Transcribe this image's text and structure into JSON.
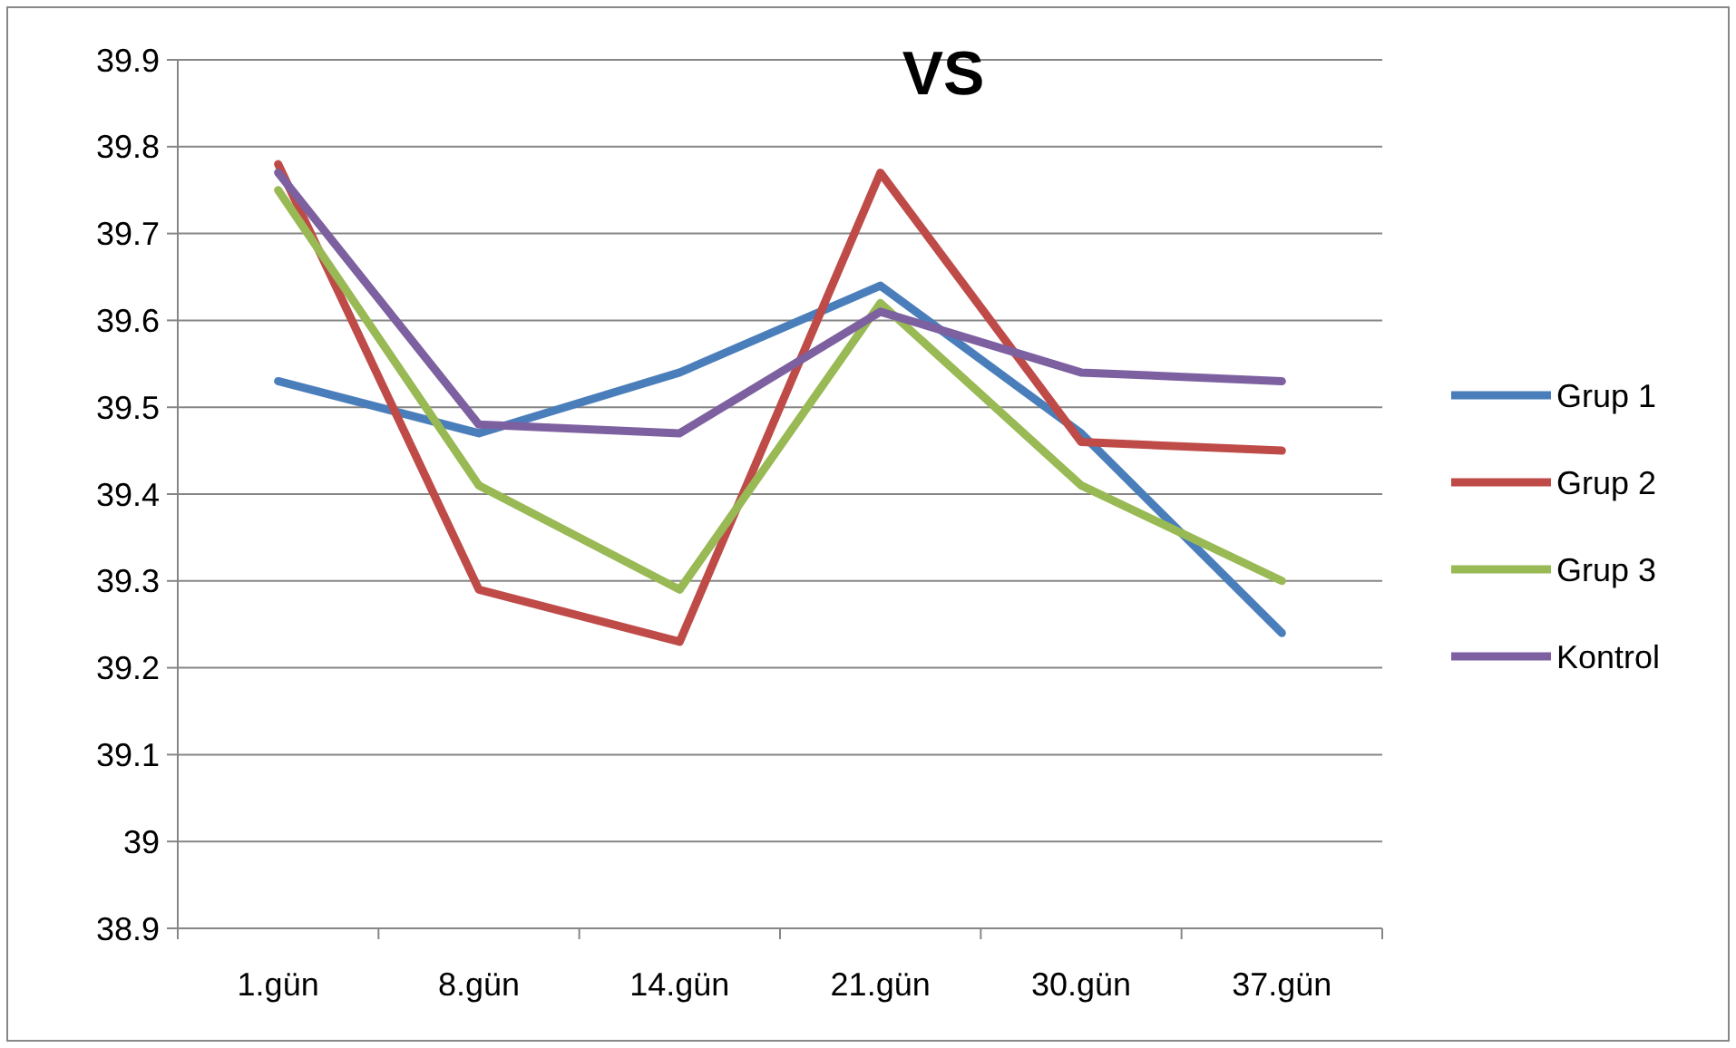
{
  "chart_data": {
    "type": "line",
    "title": "VS",
    "categories": [
      "1.gün",
      "8.gün",
      "14.gün",
      "21.gün",
      "30.gün",
      "37.gün"
    ],
    "series": [
      {
        "name": "Grup 1",
        "color": "#4a7ebb",
        "values": [
          39.53,
          39.47,
          39.54,
          39.64,
          39.47,
          39.24
        ]
      },
      {
        "name": "Grup 2",
        "color": "#be4b48",
        "values": [
          39.78,
          39.29,
          39.23,
          39.77,
          39.46,
          39.45
        ]
      },
      {
        "name": "Grup 3",
        "color": "#98b954",
        "values": [
          39.75,
          39.41,
          39.29,
          39.62,
          39.41,
          39.3
        ]
      },
      {
        "name": "Kontrol",
        "color": "#7d60a0",
        "values": [
          39.77,
          39.48,
          39.47,
          39.61,
          39.54,
          39.53
        ]
      }
    ],
    "ylim": [
      38.9,
      39.9
    ],
    "yticks": [
      38.9,
      39,
      39.1,
      39.2,
      39.3,
      39.4,
      39.5,
      39.6,
      39.7,
      39.8,
      39.9
    ],
    "grid": "y",
    "legend": "right",
    "marker": "none",
    "line_style": "solid"
  }
}
